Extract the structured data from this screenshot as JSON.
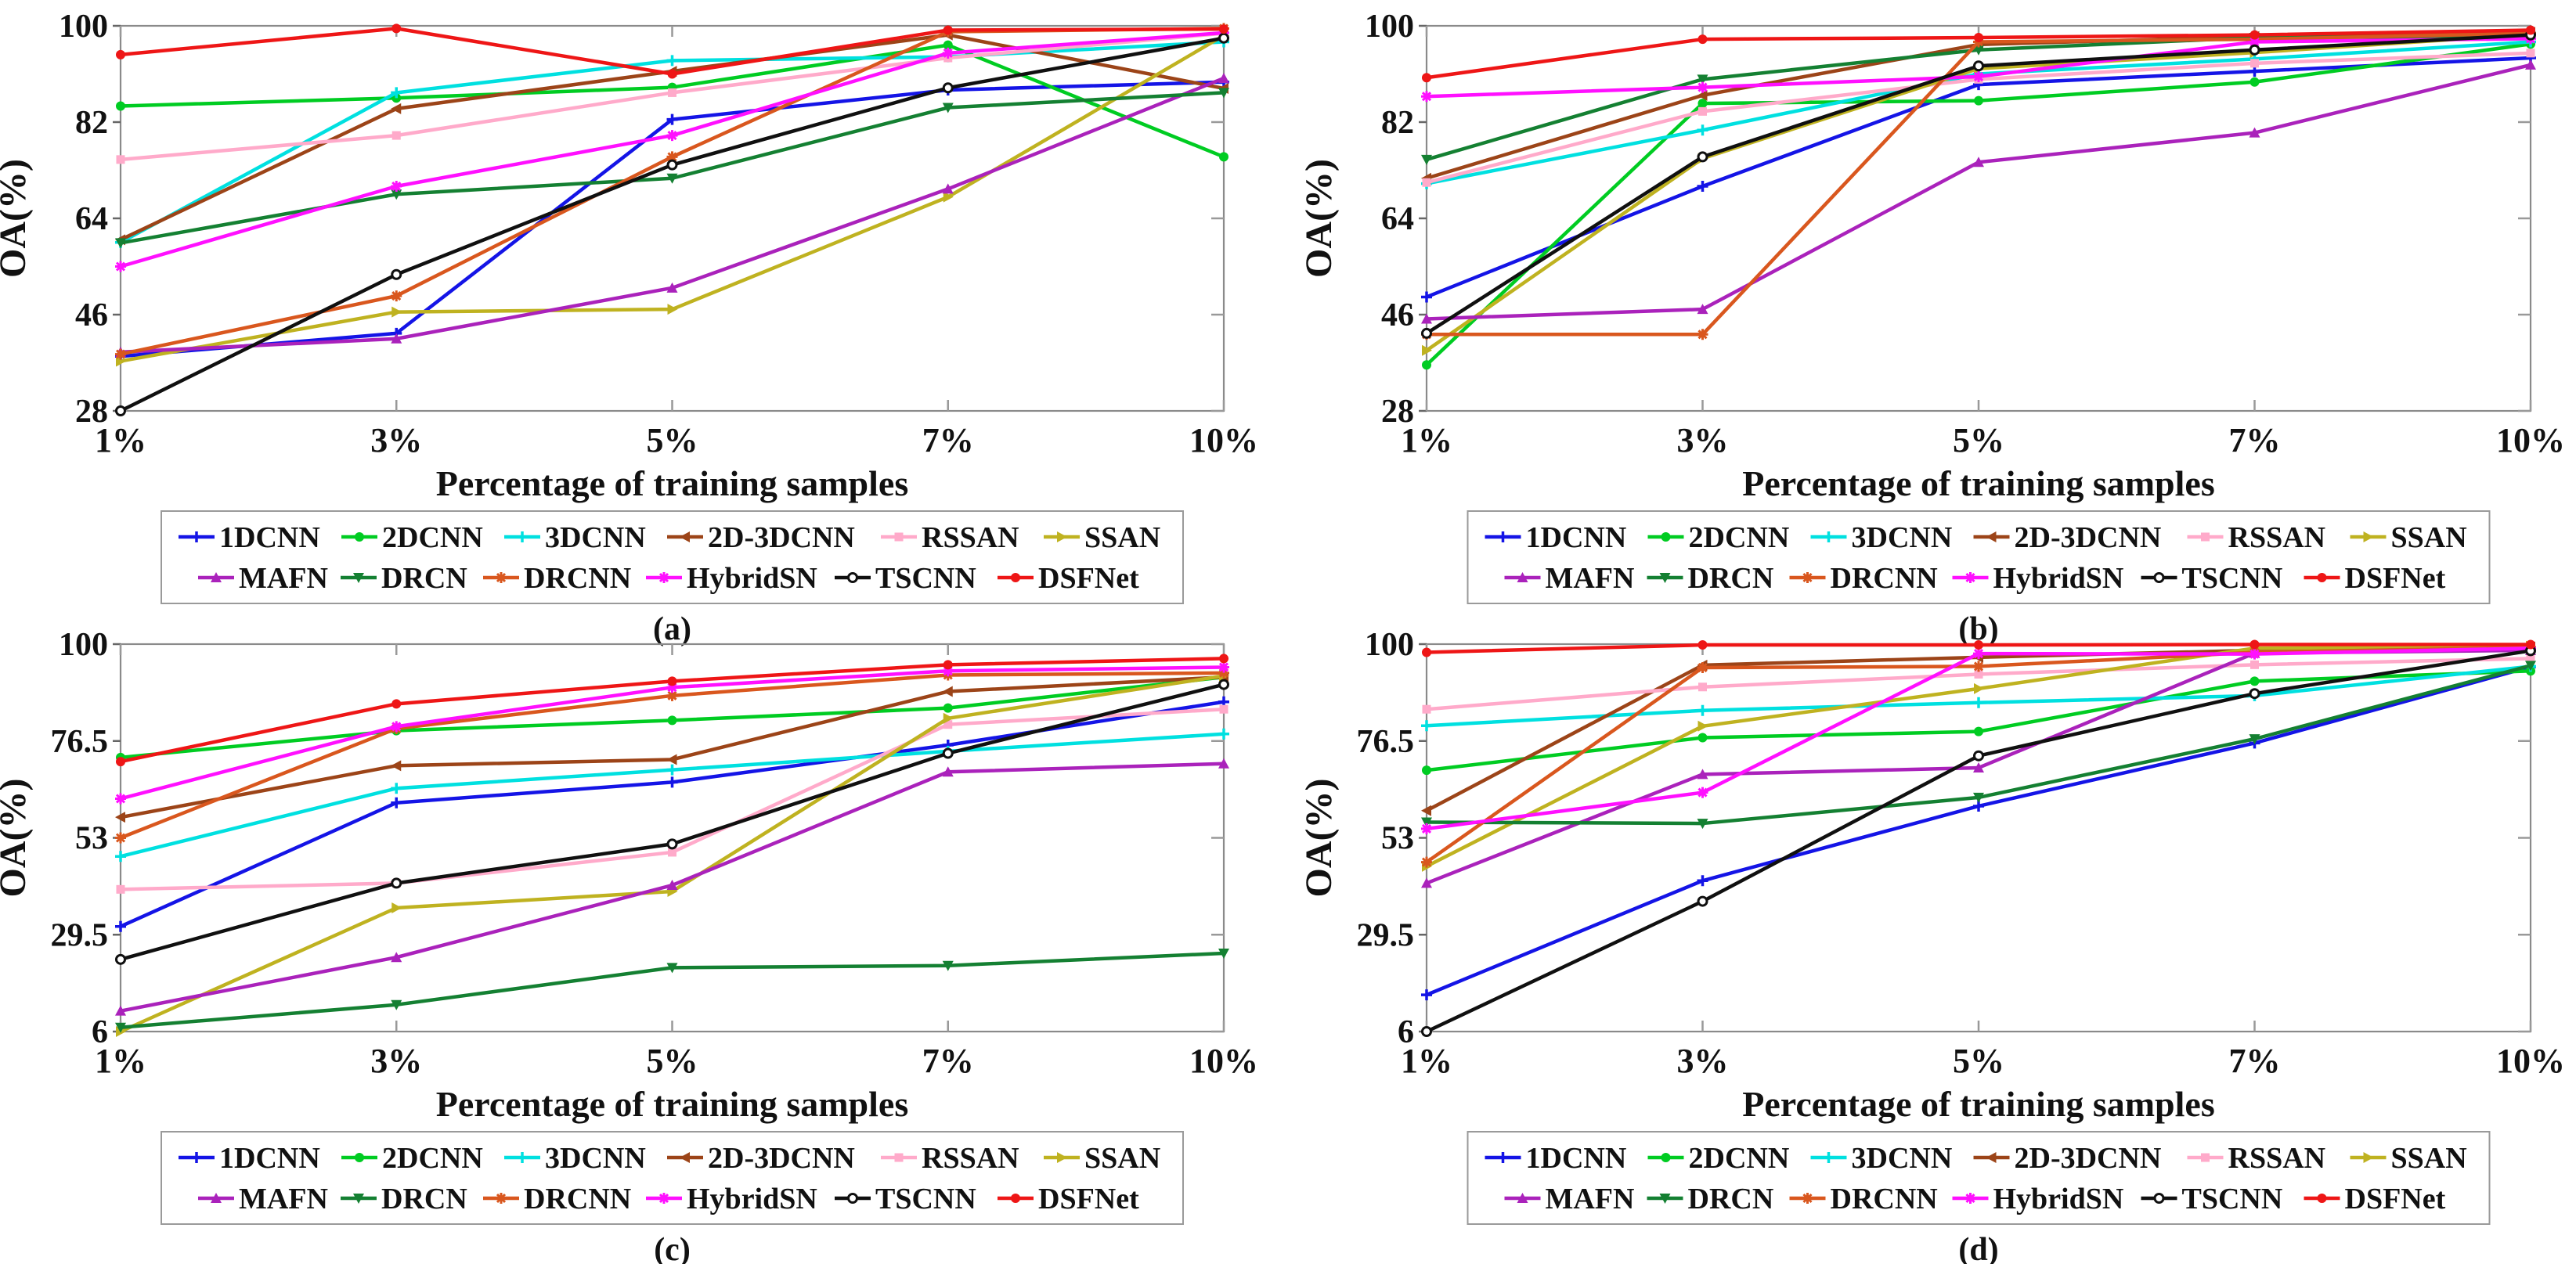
{
  "figure": {
    "background": "#FFFFFF",
    "xlabel": "Percentage of training samples",
    "ylabel": "OA(%)",
    "subplot_labels": [
      "(a)",
      "(b)",
      "(c)",
      "(d)"
    ]
  },
  "chart_data": [
    {
      "type": "line",
      "subplot_label": "(a)",
      "xlabel": "Percentage of training samples",
      "ylabel": "OA(%)",
      "categories": [
        "1%",
        "3%",
        "5%",
        "7%",
        "10%"
      ],
      "yticks": [
        28,
        46,
        64,
        82,
        100
      ],
      "ylim": [
        28,
        100
      ],
      "grid": false,
      "legend_position": "below",
      "series": [
        {
          "name": "1DCNN",
          "color": "#1414E6",
          "marker": "plus",
          "values": [
            38.2,
            42.5,
            82.5,
            88.0,
            89.5
          ]
        },
        {
          "name": "2DCNN",
          "color": "#00CC22",
          "marker": "circle",
          "values": [
            85.0,
            86.5,
            88.5,
            96.4,
            75.5
          ]
        },
        {
          "name": "3DCNN",
          "color": "#00E0E0",
          "marker": "plus",
          "values": [
            59.5,
            87.5,
            93.5,
            94.2,
            97.0
          ]
        },
        {
          "name": "2D-3DCNN",
          "color": "#9C4418",
          "marker": "tri-left",
          "values": [
            60.0,
            84.5,
            91.5,
            98.3,
            88.3
          ]
        },
        {
          "name": "RSSAN",
          "color": "#FFAACA",
          "marker": "square",
          "values": [
            75.0,
            79.5,
            87.5,
            94.0,
            98.6
          ]
        },
        {
          "name": "SSAN",
          "color": "#BFB220",
          "marker": "tri-right",
          "values": [
            37.3,
            46.5,
            47.0,
            68.0,
            98.2
          ]
        },
        {
          "name": "MAFN",
          "color": "#AA22BB",
          "marker": "tri-up",
          "values": [
            39.0,
            41.5,
            51.0,
            69.5,
            90.2
          ]
        },
        {
          "name": "DRCN",
          "color": "#148032",
          "marker": "tri-down",
          "values": [
            59.4,
            68.5,
            71.5,
            84.7,
            87.5
          ]
        },
        {
          "name": "DRCNN",
          "color": "#D9571E",
          "marker": "star",
          "values": [
            38.6,
            49.5,
            75.5,
            98.9,
            99.5
          ]
        },
        {
          "name": "HybridSN",
          "color": "#FF10FF",
          "marker": "star",
          "values": [
            55.0,
            70.0,
            79.5,
            94.9,
            98.7
          ]
        },
        {
          "name": "TSCNN",
          "color": "#101010",
          "marker": "circle-open",
          "values": [
            28.0,
            53.5,
            74.0,
            88.4,
            97.7
          ]
        },
        {
          "name": "DSFNet",
          "color": "#EE1616",
          "marker": "circle",
          "values": [
            94.6,
            99.5,
            91.0,
            99.2,
            99.4
          ]
        }
      ]
    },
    {
      "type": "line",
      "subplot_label": "(b)",
      "xlabel": "Percentage of training samples",
      "ylabel": "OA(%)",
      "categories": [
        "1%",
        "3%",
        "5%",
        "7%",
        "10%"
      ],
      "yticks": [
        28,
        46,
        64,
        82,
        100
      ],
      "ylim": [
        28,
        100
      ],
      "grid": false,
      "legend_position": "below",
      "series": [
        {
          "name": "1DCNN",
          "color": "#1414E6",
          "marker": "plus",
          "values": [
            49.3,
            70.0,
            89.0,
            91.5,
            94.0
          ]
        },
        {
          "name": "2DCNN",
          "color": "#00CC22",
          "marker": "circle",
          "values": [
            36.6,
            85.5,
            86.0,
            89.5,
            96.6
          ]
        },
        {
          "name": "3DCNN",
          "color": "#00E0E0",
          "marker": "plus",
          "values": [
            70.5,
            80.5,
            91.0,
            93.8,
            97.0
          ]
        },
        {
          "name": "2D-3DCNN",
          "color": "#9C4418",
          "marker": "tri-left",
          "values": [
            71.5,
            87.0,
            96.5,
            98.0,
            98.8
          ]
        },
        {
          "name": "RSSAN",
          "color": "#FFAACA",
          "marker": "square",
          "values": [
            70.7,
            84.0,
            90.0,
            93.0,
            94.9
          ]
        },
        {
          "name": "SSAN",
          "color": "#BFB220",
          "marker": "tri-right",
          "values": [
            39.3,
            75.2,
            92.0,
            95.0,
            98.4
          ]
        },
        {
          "name": "MAFN",
          "color": "#AA22BB",
          "marker": "tri-up",
          "values": [
            45.2,
            47.0,
            74.5,
            80.0,
            92.7
          ]
        },
        {
          "name": "DRCN",
          "color": "#148032",
          "marker": "tri-down",
          "values": [
            75.0,
            90.0,
            95.5,
            97.8,
            98.0
          ]
        },
        {
          "name": "DRCNN",
          "color": "#D9571E",
          "marker": "star",
          "values": [
            42.3,
            42.3,
            97.0,
            97.5,
            98.6
          ]
        },
        {
          "name": "HybridSN",
          "color": "#FF10FF",
          "marker": "star",
          "values": [
            86.8,
            88.5,
            90.5,
            97.0,
            97.6
          ]
        },
        {
          "name": "TSCNN",
          "color": "#101010",
          "marker": "circle-open",
          "values": [
            42.5,
            75.5,
            92.5,
            95.5,
            98.3
          ]
        },
        {
          "name": "DSFNet",
          "color": "#EE1616",
          "marker": "circle",
          "values": [
            90.3,
            97.5,
            97.8,
            98.3,
            99.2
          ]
        }
      ]
    },
    {
      "type": "line",
      "subplot_label": "(c)",
      "xlabel": "Percentage of training samples",
      "ylabel": "OA(%)",
      "categories": [
        "1%",
        "3%",
        "5%",
        "7%",
        "10%"
      ],
      "yticks": [
        6,
        29.5,
        53,
        76.5,
        100
      ],
      "ylim": [
        6,
        100
      ],
      "grid": false,
      "legend_position": "below",
      "series": [
        {
          "name": "1DCNN",
          "color": "#1414E6",
          "marker": "plus",
          "values": [
            31.5,
            61.5,
            66.5,
            75.5,
            86.0
          ]
        },
        {
          "name": "2DCNN",
          "color": "#00CC22",
          "marker": "circle",
          "values": [
            72.5,
            79.0,
            81.5,
            84.5,
            92.0
          ]
        },
        {
          "name": "3DCNN",
          "color": "#00E0E0",
          "marker": "plus",
          "values": [
            48.5,
            65.0,
            69.5,
            74.0,
            78.2
          ]
        },
        {
          "name": "2D-3DCNN",
          "color": "#9C4418",
          "marker": "tri-left",
          "values": [
            58.0,
            70.5,
            72.0,
            88.5,
            92.0
          ]
        },
        {
          "name": "RSSAN",
          "color": "#FFAACA",
          "marker": "square",
          "values": [
            40.5,
            42.0,
            49.5,
            80.5,
            84.2
          ]
        },
        {
          "name": "SSAN",
          "color": "#BFB220",
          "marker": "tri-right",
          "values": [
            6.0,
            36.0,
            40.0,
            82.0,
            92.3
          ]
        },
        {
          "name": "MAFN",
          "color": "#AA22BB",
          "marker": "tri-up",
          "values": [
            11.0,
            24.0,
            41.5,
            69.0,
            71.0
          ]
        },
        {
          "name": "DRCN",
          "color": "#148032",
          "marker": "tri-down",
          "values": [
            7.0,
            12.5,
            21.5,
            22.0,
            25.0
          ]
        },
        {
          "name": "DRCNN",
          "color": "#D9571E",
          "marker": "star",
          "values": [
            53.0,
            79.5,
            87.5,
            92.5,
            93.0
          ]
        },
        {
          "name": "HybridSN",
          "color": "#FF10FF",
          "marker": "star",
          "values": [
            62.5,
            80.0,
            89.5,
            93.5,
            94.4
          ]
        },
        {
          "name": "TSCNN",
          "color": "#101010",
          "marker": "circle-open",
          "values": [
            23.5,
            42.0,
            51.5,
            73.5,
            90.2
          ]
        },
        {
          "name": "DSFNet",
          "color": "#EE1616",
          "marker": "circle",
          "values": [
            71.5,
            85.5,
            91.0,
            95.0,
            96.5
          ]
        }
      ]
    },
    {
      "type": "line",
      "subplot_label": "(d)",
      "xlabel": "Percentage of training samples",
      "ylabel": "OA(%)",
      "categories": [
        "1%",
        "3%",
        "5%",
        "7%",
        "10%"
      ],
      "yticks": [
        6,
        29.5,
        53,
        76.5,
        100
      ],
      "ylim": [
        6,
        100
      ],
      "grid": false,
      "legend_position": "below",
      "series": [
        {
          "name": "1DCNN",
          "color": "#1414E6",
          "marker": "plus",
          "values": [
            14.9,
            42.6,
            60.7,
            76.0,
            94.5
          ]
        },
        {
          "name": "2DCNN",
          "color": "#00CC22",
          "marker": "circle",
          "values": [
            69.4,
            77.3,
            78.8,
            91.0,
            93.5
          ]
        },
        {
          "name": "3DCNN",
          "color": "#00E0E0",
          "marker": "plus",
          "values": [
            80.2,
            83.9,
            85.8,
            87.5,
            94.6
          ]
        },
        {
          "name": "2D-3DCNN",
          "color": "#9C4418",
          "marker": "tri-left",
          "values": [
            59.6,
            94.9,
            96.8,
            98.5,
            99.3
          ]
        },
        {
          "name": "RSSAN",
          "color": "#FFAACA",
          "marker": "square",
          "values": [
            84.2,
            89.6,
            92.7,
            95.0,
            96.5
          ]
        },
        {
          "name": "SSAN",
          "color": "#BFB220",
          "marker": "tri-right",
          "values": [
            46.1,
            80.1,
            89.2,
            99.0,
            99.5
          ]
        },
        {
          "name": "MAFN",
          "color": "#AA22BB",
          "marker": "tri-up",
          "values": [
            42.0,
            68.4,
            70.0,
            97.8,
            98.5
          ]
        },
        {
          "name": "DRCN",
          "color": "#148032",
          "marker": "tri-down",
          "values": [
            56.8,
            56.5,
            62.8,
            77.0,
            94.8
          ]
        },
        {
          "name": "DRCNN",
          "color": "#D9571E",
          "marker": "star",
          "values": [
            47.1,
            94.3,
            94.6,
            98.0,
            99.2
          ]
        },
        {
          "name": "HybridSN",
          "color": "#FF10FF",
          "marker": "star",
          "values": [
            55.2,
            64.0,
            97.7,
            97.6,
            99.0
          ]
        },
        {
          "name": "TSCNN",
          "color": "#101010",
          "marker": "circle-open",
          "values": [
            6.0,
            37.6,
            72.9,
            88.0,
            98.4
          ]
        },
        {
          "name": "DSFNet",
          "color": "#EE1616",
          "marker": "circle",
          "values": [
            98.0,
            99.8,
            99.8,
            99.9,
            99.9
          ]
        }
      ]
    }
  ]
}
